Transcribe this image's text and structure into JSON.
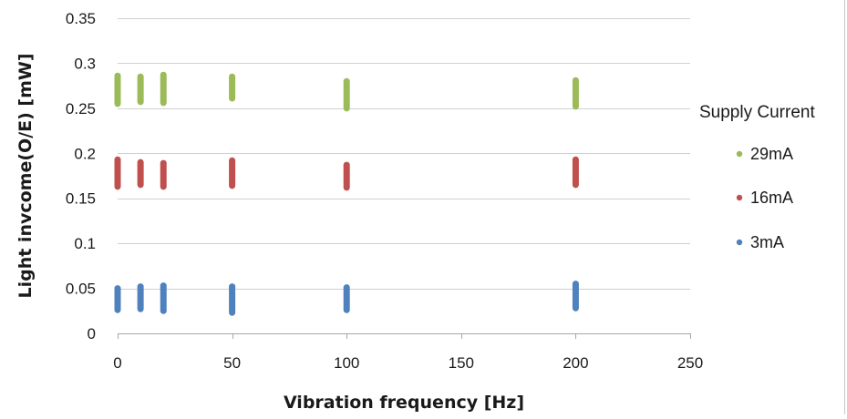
{
  "chart_data": {
    "type": "scatter",
    "xlabel": "Vibration frequency [Hz]",
    "ylabel": "Light invcome(O/E) [mW]",
    "xlim": [
      0,
      250
    ],
    "ylim": [
      0,
      0.35
    ],
    "xticks": [
      0,
      50,
      100,
      150,
      200,
      250
    ],
    "yticks": [
      0,
      0.05,
      0.1,
      0.15,
      0.2,
      0.25,
      0.3,
      0.35
    ],
    "ytick_labels": [
      "0",
      "0.05",
      "0.1",
      "0.15",
      "0.2",
      "0.25",
      "0.3",
      "0.35"
    ],
    "grid": "horizontal",
    "legend": {
      "title": "Supply Current",
      "position": "right"
    },
    "series": [
      {
        "name": "29mA",
        "color": "#9bbb59",
        "points": [
          {
            "x": 0,
            "y_min": 0.255,
            "y_max": 0.286
          },
          {
            "x": 10,
            "y_min": 0.257,
            "y_max": 0.285
          },
          {
            "x": 20,
            "y_min": 0.256,
            "y_max": 0.287
          },
          {
            "x": 50,
            "y_min": 0.261,
            "y_max": 0.285
          },
          {
            "x": 100,
            "y_min": 0.25,
            "y_max": 0.28
          },
          {
            "x": 200,
            "y_min": 0.252,
            "y_max": 0.281
          }
        ]
      },
      {
        "name": "16mA",
        "color": "#c0504d",
        "points": [
          {
            "x": 0,
            "y_min": 0.163,
            "y_max": 0.193
          },
          {
            "x": 10,
            "y_min": 0.165,
            "y_max": 0.19
          },
          {
            "x": 20,
            "y_min": 0.163,
            "y_max": 0.189
          },
          {
            "x": 50,
            "y_min": 0.164,
            "y_max": 0.192
          },
          {
            "x": 100,
            "y_min": 0.162,
            "y_max": 0.187
          },
          {
            "x": 200,
            "y_min": 0.165,
            "y_max": 0.193
          }
        ]
      },
      {
        "name": "3mA",
        "color": "#4f81bd",
        "points": [
          {
            "x": 0,
            "y_min": 0.026,
            "y_max": 0.05
          },
          {
            "x": 10,
            "y_min": 0.027,
            "y_max": 0.052
          },
          {
            "x": 20,
            "y_min": 0.025,
            "y_max": 0.053
          },
          {
            "x": 50,
            "y_min": 0.023,
            "y_max": 0.052
          },
          {
            "x": 100,
            "y_min": 0.026,
            "y_max": 0.051
          },
          {
            "x": 200,
            "y_min": 0.028,
            "y_max": 0.055
          }
        ]
      }
    ]
  }
}
